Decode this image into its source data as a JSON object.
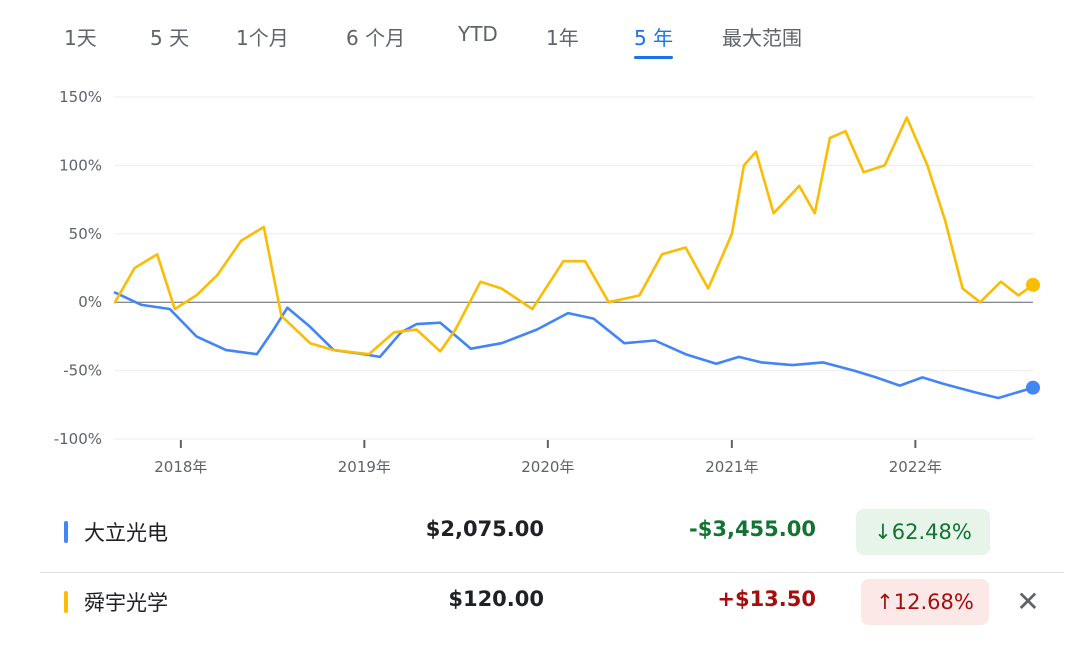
{
  "tabs": [
    {
      "label": "1天",
      "active": false
    },
    {
      "label": "5 天",
      "active": false
    },
    {
      "label": "1个月",
      "active": false
    },
    {
      "label": "6 个月",
      "active": false
    },
    {
      "label": "YTD",
      "active": false
    },
    {
      "label": "1年",
      "active": false
    },
    {
      "label": "5 年",
      "active": true
    },
    {
      "label": "最大范围",
      "active": false
    }
  ],
  "chart_data": {
    "type": "line",
    "ytick_labels": [
      "150%",
      "100%",
      "50%",
      "0%",
      "-50%",
      "-100%"
    ],
    "yticks": [
      150,
      100,
      50,
      0,
      -50,
      -100
    ],
    "ylim": [
      -100,
      150
    ],
    "xtick_labels": [
      "2018年",
      "2019年",
      "2020年",
      "2021年",
      "2022年"
    ],
    "xticks": [
      "2018-01-01",
      "2019-01-01",
      "2020-01-01",
      "2021-01-01",
      "2022-01-01"
    ],
    "xlim": [
      "2017-08-23",
      "2022-08-23"
    ],
    "grid": true,
    "series": [
      {
        "name": "大立光电",
        "color": "#4285f4",
        "x": [
          "2017-08-23",
          "2017-10-15",
          "2017-12-10",
          "2018-02-01",
          "2018-04-01",
          "2018-06-01",
          "2018-07-01",
          "2018-08-01",
          "2018-09-15",
          "2018-11-01",
          "2018-12-31",
          "2019-02-01",
          "2019-03-15",
          "2019-04-15",
          "2019-06-01",
          "2019-08-01",
          "2019-10-01",
          "2019-12-10",
          "2020-02-10",
          "2020-04-01",
          "2020-06-01",
          "2020-08-01",
          "2020-10-01",
          "2020-12-01",
          "2021-01-15",
          "2021-03-01",
          "2021-05-01",
          "2021-07-01",
          "2021-09-01",
          "2021-10-15",
          "2021-12-01",
          "2022-01-15",
          "2022-03-01",
          "2022-05-01",
          "2022-06-15",
          "2022-08-23"
        ],
        "y": [
          7,
          -2,
          -5,
          -25,
          -35,
          -38,
          -22,
          -4,
          -18,
          -35,
          -38,
          -40,
          -22,
          -16,
          -15,
          -34,
          -30,
          -20,
          -8,
          -12,
          -30,
          -28,
          -38,
          -45,
          -40,
          -44,
          -46,
          -44,
          -50,
          -55,
          -61,
          -55,
          -60,
          -66,
          -70,
          -62.48
        ]
      },
      {
        "name": "舜宇光学",
        "color": "#fbbc04",
        "x": [
          "2017-08-23",
          "2017-10-01",
          "2017-11-15",
          "2017-12-20",
          "2018-02-01",
          "2018-03-15",
          "2018-05-01",
          "2018-06-15",
          "2018-07-20",
          "2018-09-15",
          "2018-11-01",
          "2019-01-10",
          "2019-03-01",
          "2019-04-15",
          "2019-06-01",
          "2019-07-01",
          "2019-08-20",
          "2019-10-01",
          "2019-12-01",
          "2020-02-01",
          "2020-03-15",
          "2020-05-01",
          "2020-07-01",
          "2020-08-15",
          "2020-10-01",
          "2020-11-15",
          "2021-01-01",
          "2021-01-25",
          "2021-02-18",
          "2021-03-25",
          "2021-05-15",
          "2021-06-15",
          "2021-07-15",
          "2021-08-15",
          "2021-09-20",
          "2021-11-01",
          "2021-12-15",
          "2022-01-25",
          "2022-03-01",
          "2022-04-05",
          "2022-05-10",
          "2022-06-20",
          "2022-07-25",
          "2022-08-23"
        ],
        "y": [
          0,
          25,
          35,
          -5,
          5,
          20,
          45,
          55,
          -10,
          -30,
          -35,
          -38,
          -22,
          -20,
          -36,
          -20,
          15,
          10,
          -5,
          30,
          30,
          0,
          5,
          35,
          40,
          10,
          50,
          100,
          110,
          65,
          85,
          65,
          120,
          125,
          95,
          100,
          135,
          100,
          60,
          10,
          0,
          15,
          5,
          12.68
        ]
      }
    ],
    "end_markers": true
  },
  "legend": [
    {
      "name": "大立光电",
      "color": "#4285f4",
      "price": "$2,075.00",
      "change": "-$3,455.00",
      "pct": "62.48%",
      "direction": "down",
      "dir_icon": "↓"
    },
    {
      "name": "舜宇光学",
      "color": "#fbbc04",
      "price": "$120.00",
      "change": "+$13.50",
      "pct": "12.68%",
      "direction": "up",
      "dir_icon": "↑",
      "close_icon": "✕"
    }
  ]
}
